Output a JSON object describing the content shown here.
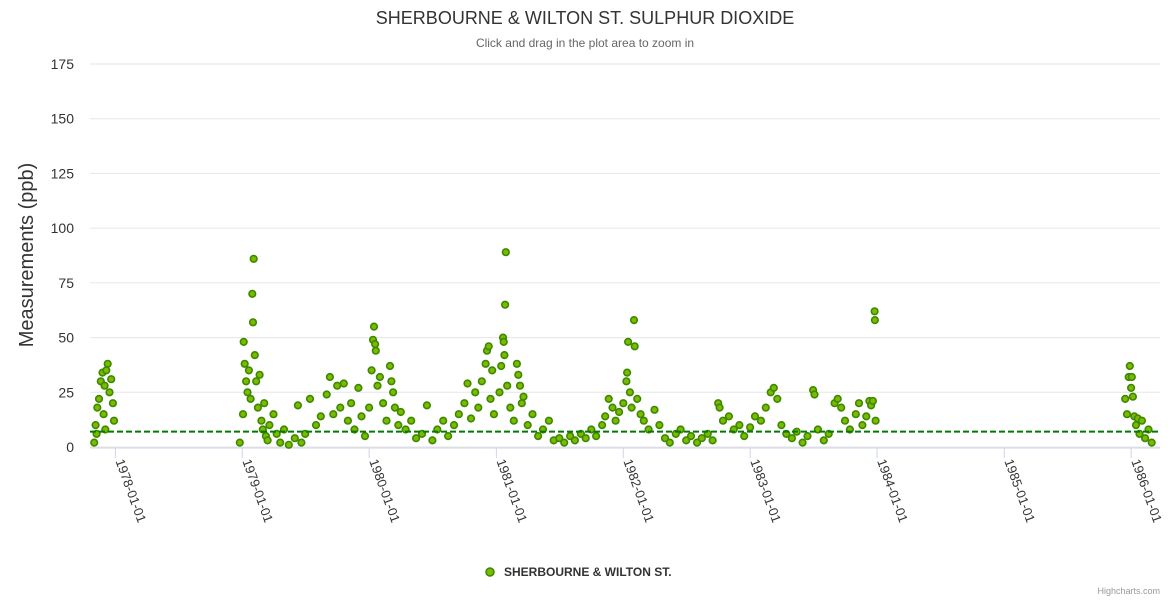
{
  "chart_data": {
    "type": "scatter",
    "title": "SHERBOURNE & WILTON ST. SULPHUR DIOXIDE",
    "subtitle": "Click and drag in the plot area to zoom in",
    "ylabel": "Measurements (ppb)",
    "ylim": [
      0,
      175
    ],
    "yticks": [
      "0",
      "25",
      "50",
      "75",
      "100",
      "125",
      "150",
      "175"
    ],
    "xlim": [
      "1977-10-20",
      "1986-03-25"
    ],
    "xticks": [
      "1978-01-01",
      "1979-01-01",
      "1980-01-01",
      "1981-01-01",
      "1982-01-01",
      "1983-01-01",
      "1984-01-01",
      "1985-01-01",
      "1986-01-01"
    ],
    "grid": "horizontal",
    "legend_position": "bottom-center",
    "reference_line": {
      "value": 7,
      "color": "#007a00",
      "style": "dashed"
    },
    "colors": {
      "point_fill": "#7fb800",
      "point_stroke": "#3a8a00"
    },
    "credits": "Highcharts.com",
    "series": [
      {
        "name": "SHERBOURNE & WILTON ST.",
        "points": [
          [
            "1977-11-01",
            2
          ],
          [
            "1977-11-05",
            10
          ],
          [
            "1977-11-10",
            18
          ],
          [
            "1977-11-15",
            22
          ],
          [
            "1977-11-20",
            30
          ],
          [
            "1977-11-25",
            34
          ],
          [
            "1977-12-01",
            28
          ],
          [
            "1977-12-06",
            35
          ],
          [
            "1977-12-10",
            38
          ],
          [
            "1977-12-15",
            25
          ],
          [
            "1977-12-20",
            31
          ],
          [
            "1977-12-25",
            20
          ],
          [
            "1977-12-28",
            12
          ],
          [
            "1977-11-08",
            6
          ],
          [
            "1977-11-28",
            15
          ],
          [
            "1977-12-03",
            8
          ],
          [
            "1978-12-25",
            2
          ],
          [
            "1979-01-03",
            15
          ],
          [
            "1979-01-05",
            48
          ],
          [
            "1979-01-08",
            38
          ],
          [
            "1979-01-12",
            30
          ],
          [
            "1979-01-16",
            25
          ],
          [
            "1979-01-20",
            35
          ],
          [
            "1979-01-25",
            22
          ],
          [
            "1979-01-30",
            70
          ],
          [
            "1979-02-01",
            57
          ],
          [
            "1979-02-03",
            86
          ],
          [
            "1979-02-06",
            42
          ],
          [
            "1979-02-10",
            30
          ],
          [
            "1979-02-15",
            18
          ],
          [
            "1979-02-20",
            33
          ],
          [
            "1979-02-25",
            12
          ],
          [
            "1979-03-01",
            8
          ],
          [
            "1979-03-05",
            20
          ],
          [
            "1979-03-10",
            5
          ],
          [
            "1979-03-15",
            3
          ],
          [
            "1979-03-20",
            10
          ],
          [
            "1979-04-01",
            15
          ],
          [
            "1979-04-10",
            6
          ],
          [
            "1979-04-20",
            2
          ],
          [
            "1979-05-01",
            8
          ],
          [
            "1979-05-15",
            1
          ],
          [
            "1979-06-01",
            4
          ],
          [
            "1979-06-10",
            19
          ],
          [
            "1979-06-20",
            2
          ],
          [
            "1979-07-01",
            6
          ],
          [
            "1979-07-15",
            22
          ],
          [
            "1979-08-01",
            10
          ],
          [
            "1979-08-15",
            14
          ],
          [
            "1979-09-01",
            24
          ],
          [
            "1979-09-10",
            32
          ],
          [
            "1979-09-20",
            15
          ],
          [
            "1979-10-01",
            28
          ],
          [
            "1979-10-10",
            18
          ],
          [
            "1979-10-20",
            29
          ],
          [
            "1979-11-01",
            12
          ],
          [
            "1979-11-10",
            20
          ],
          [
            "1979-11-20",
            8
          ],
          [
            "1979-12-01",
            27
          ],
          [
            "1979-12-10",
            14
          ],
          [
            "1979-12-20",
            5
          ],
          [
            "1980-01-01",
            18
          ],
          [
            "1980-01-08",
            35
          ],
          [
            "1980-01-12",
            49
          ],
          [
            "1980-01-15",
            55
          ],
          [
            "1980-01-18",
            47
          ],
          [
            "1980-01-20",
            44
          ],
          [
            "1980-01-25",
            28
          ],
          [
            "1980-02-01",
            32
          ],
          [
            "1980-02-10",
            20
          ],
          [
            "1980-02-20",
            12
          ],
          [
            "1980-03-01",
            37
          ],
          [
            "1980-03-05",
            30
          ],
          [
            "1980-03-10",
            25
          ],
          [
            "1980-03-15",
            18
          ],
          [
            "1980-03-25",
            10
          ],
          [
            "1980-04-01",
            16
          ],
          [
            "1980-04-15",
            8
          ],
          [
            "1980-05-01",
            12
          ],
          [
            "1980-05-15",
            4
          ],
          [
            "1980-06-01",
            6
          ],
          [
            "1980-06-15",
            19
          ],
          [
            "1980-07-01",
            3
          ],
          [
            "1980-07-15",
            8
          ],
          [
            "1980-08-01",
            12
          ],
          [
            "1980-08-15",
            5
          ],
          [
            "1980-09-01",
            10
          ],
          [
            "1980-09-15",
            15
          ],
          [
            "1980-10-01",
            20
          ],
          [
            "1980-10-10",
            29
          ],
          [
            "1980-10-20",
            13
          ],
          [
            "1980-11-01",
            25
          ],
          [
            "1980-11-10",
            18
          ],
          [
            "1980-11-20",
            30
          ],
          [
            "1980-12-01",
            38
          ],
          [
            "1980-12-05",
            44
          ],
          [
            "1980-12-10",
            46
          ],
          [
            "1980-12-15",
            22
          ],
          [
            "1980-12-20",
            35
          ],
          [
            "1980-12-25",
            15
          ],
          [
            "1981-01-10",
            25
          ],
          [
            "1981-01-15",
            37
          ],
          [
            "1981-01-20",
            50
          ],
          [
            "1981-01-22",
            48
          ],
          [
            "1981-01-24",
            42
          ],
          [
            "1981-01-26",
            65
          ],
          [
            "1981-01-28",
            89
          ],
          [
            "1981-02-01",
            28
          ],
          [
            "1981-02-10",
            18
          ],
          [
            "1981-02-20",
            12
          ],
          [
            "1981-03-01",
            38
          ],
          [
            "1981-03-05",
            33
          ],
          [
            "1981-03-10",
            28
          ],
          [
            "1981-03-15",
            20
          ],
          [
            "1981-03-20",
            23
          ],
          [
            "1981-04-01",
            10
          ],
          [
            "1981-04-15",
            15
          ],
          [
            "1981-05-01",
            5
          ],
          [
            "1981-05-15",
            8
          ],
          [
            "1981-06-01",
            12
          ],
          [
            "1981-06-15",
            3
          ],
          [
            "1981-07-01",
            4
          ],
          [
            "1981-07-15",
            2
          ],
          [
            "1981-08-01",
            5
          ],
          [
            "1981-08-15",
            3
          ],
          [
            "1981-09-01",
            6
          ],
          [
            "1981-09-15",
            4
          ],
          [
            "1981-10-01",
            8
          ],
          [
            "1981-10-15",
            5
          ],
          [
            "1981-11-01",
            10
          ],
          [
            "1981-11-10",
            14
          ],
          [
            "1981-11-20",
            22
          ],
          [
            "1981-12-01",
            18
          ],
          [
            "1981-12-10",
            12
          ],
          [
            "1981-12-20",
            16
          ],
          [
            "1982-01-01",
            20
          ],
          [
            "1982-01-10",
            30
          ],
          [
            "1982-01-12",
            34
          ],
          [
            "1982-01-15",
            48
          ],
          [
            "1982-01-20",
            25
          ],
          [
            "1982-01-25",
            18
          ],
          [
            "1982-02-01",
            58
          ],
          [
            "1982-02-03",
            46
          ],
          [
            "1982-02-10",
            22
          ],
          [
            "1982-02-20",
            15
          ],
          [
            "1982-03-01",
            12
          ],
          [
            "1982-03-15",
            8
          ],
          [
            "1982-04-01",
            17
          ],
          [
            "1982-04-15",
            10
          ],
          [
            "1982-05-01",
            4
          ],
          [
            "1982-05-15",
            2
          ],
          [
            "1982-06-01",
            6
          ],
          [
            "1982-06-15",
            8
          ],
          [
            "1982-07-01",
            3
          ],
          [
            "1982-07-15",
            5
          ],
          [
            "1982-08-01",
            2
          ],
          [
            "1982-08-15",
            4
          ],
          [
            "1982-09-01",
            6
          ],
          [
            "1982-09-15",
            3
          ],
          [
            "1982-10-01",
            20
          ],
          [
            "1982-10-05",
            18
          ],
          [
            "1982-10-15",
            12
          ],
          [
            "1982-11-01",
            14
          ],
          [
            "1982-11-15",
            8
          ],
          [
            "1982-12-01",
            10
          ],
          [
            "1982-12-15",
            5
          ],
          [
            "1983-01-01",
            9
          ],
          [
            "1983-01-15",
            14
          ],
          [
            "1983-02-01",
            12
          ],
          [
            "1983-02-15",
            18
          ],
          [
            "1983-03-01",
            25
          ],
          [
            "1983-03-10",
            27
          ],
          [
            "1983-03-20",
            22
          ],
          [
            "1983-04-01",
            10
          ],
          [
            "1983-04-15",
            6
          ],
          [
            "1983-05-01",
            4
          ],
          [
            "1983-05-15",
            7
          ],
          [
            "1983-06-01",
            2
          ],
          [
            "1983-06-15",
            5
          ],
          [
            "1983-07-01",
            26
          ],
          [
            "1983-07-05",
            24
          ],
          [
            "1983-07-15",
            8
          ],
          [
            "1983-08-01",
            3
          ],
          [
            "1983-08-15",
            6
          ],
          [
            "1983-09-01",
            20
          ],
          [
            "1983-09-10",
            22
          ],
          [
            "1983-09-20",
            18
          ],
          [
            "1983-10-01",
            12
          ],
          [
            "1983-10-15",
            8
          ],
          [
            "1983-11-01",
            15
          ],
          [
            "1983-11-10",
            20
          ],
          [
            "1983-11-20",
            10
          ],
          [
            "1983-12-01",
            14
          ],
          [
            "1983-12-10",
            21
          ],
          [
            "1983-12-15",
            19
          ],
          [
            "1983-12-20",
            21
          ],
          [
            "1983-12-25",
            62
          ],
          [
            "1983-12-26",
            58
          ],
          [
            "1983-12-28",
            12
          ],
          [
            "1985-12-15",
            22
          ],
          [
            "1985-12-20",
            15
          ],
          [
            "1985-12-25",
            32
          ],
          [
            "1985-12-28",
            37
          ],
          [
            "1986-01-01",
            27
          ],
          [
            "1986-01-03",
            32
          ],
          [
            "1986-01-06",
            23
          ],
          [
            "1986-01-10",
            14
          ],
          [
            "1986-01-15",
            10
          ],
          [
            "1986-01-20",
            13
          ],
          [
            "1986-01-25",
            6
          ],
          [
            "1986-02-01",
            12
          ],
          [
            "1986-02-10",
            4
          ],
          [
            "1986-02-20",
            8
          ],
          [
            "1986-03-01",
            2
          ]
        ]
      }
    ]
  }
}
